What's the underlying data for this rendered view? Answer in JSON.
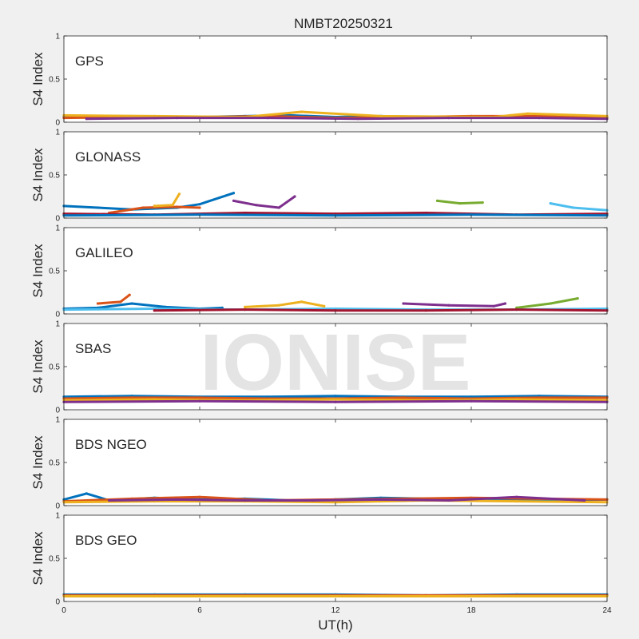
{
  "chart_data": {
    "type": "line",
    "title": "NMBT20250321",
    "xlabel": "UT(h)",
    "ylabel": "S4 Index",
    "xlim": [
      0,
      24
    ],
    "ylim": [
      0,
      1
    ],
    "xticks": [
      "0",
      "6",
      "12",
      "18",
      "24"
    ],
    "yticks": [
      "0",
      "0.5",
      "1"
    ],
    "grid": false,
    "watermark": "IONISE",
    "colors": [
      "#0072bd",
      "#d95319",
      "#edb120",
      "#7e2f8e",
      "#77ac30",
      "#4dbeee",
      "#a2142f"
    ],
    "panels": [
      {
        "name": "GPS",
        "series": [
          {
            "x": [
              0,
              2,
              4,
              6,
              8,
              10,
              12,
              14,
              16,
              18,
              20,
              22,
              24
            ],
            "values": [
              0.06,
              0.07,
              0.05,
              0.06,
              0.07,
              0.08,
              0.06,
              0.07,
              0.06,
              0.06,
              0.07,
              0.06,
              0.06
            ]
          },
          {
            "x": [
              0,
              3,
              6,
              9,
              12,
              15,
              18,
              21,
              24
            ],
            "values": [
              0.05,
              0.06,
              0.06,
              0.07,
              0.05,
              0.06,
              0.07,
              0.07,
              0.05
            ]
          },
          {
            "x": [
              0,
              4,
              8,
              10.5,
              14,
              19,
              20.5,
              24
            ],
            "values": [
              0.08,
              0.07,
              0.06,
              0.12,
              0.07,
              0.06,
              0.1,
              0.07
            ]
          },
          {
            "x": [
              1,
              5,
              9,
              13,
              17,
              21,
              24
            ],
            "values": [
              0.04,
              0.05,
              0.05,
              0.04,
              0.05,
              0.05,
              0.04
            ]
          }
        ]
      },
      {
        "name": "GLONASS",
        "series": [
          {
            "x": [
              0,
              1.5,
              3,
              5,
              6,
              7.5
            ],
            "values": [
              0.14,
              0.12,
              0.1,
              0.12,
              0.16,
              0.29
            ]
          },
          {
            "x": [
              2,
              3.5,
              5,
              6
            ],
            "values": [
              0.06,
              0.12,
              0.13,
              0.12
            ]
          },
          {
            "x": [
              4,
              4.8,
              5.1
            ],
            "values": [
              0.14,
              0.15,
              0.28
            ]
          },
          {
            "x": [
              7.5,
              8.5,
              9.5,
              10.2
            ],
            "values": [
              0.2,
              0.15,
              0.12,
              0.25
            ]
          },
          {
            "x": [
              16.5,
              17.5,
              18.5
            ],
            "values": [
              0.2,
              0.17,
              0.18
            ]
          },
          {
            "x": [
              21.5,
              22.5,
              24
            ],
            "values": [
              0.17,
              0.12,
              0.09
            ]
          },
          {
            "x": [
              0,
              4,
              8,
              12,
              16,
              20,
              24
            ],
            "values": [
              0.05,
              0.04,
              0.06,
              0.05,
              0.06,
              0.04,
              0.05
            ]
          },
          {
            "x": [
              0,
              6,
              12,
              18,
              24
            ],
            "values": [
              0.03,
              0.04,
              0.03,
              0.04,
              0.03
            ]
          }
        ]
      },
      {
        "name": "GALILEO",
        "series": [
          {
            "x": [
              0,
              1.5,
              3,
              4.5,
              6,
              7
            ],
            "values": [
              0.06,
              0.07,
              0.12,
              0.08,
              0.06,
              0.07
            ]
          },
          {
            "x": [
              1.5,
              2.5,
              2.9
            ],
            "values": [
              0.12,
              0.14,
              0.22
            ]
          },
          {
            "x": [
              8,
              9.5,
              10.5,
              11.5
            ],
            "values": [
              0.08,
              0.1,
              0.14,
              0.09
            ]
          },
          {
            "x": [
              15,
              17,
              19,
              19.5
            ],
            "values": [
              0.12,
              0.1,
              0.09,
              0.12
            ]
          },
          {
            "x": [
              20,
              21.5,
              22.7
            ],
            "values": [
              0.07,
              0.12,
              0.18
            ]
          },
          {
            "x": [
              0,
              4,
              8,
              12,
              16,
              20,
              24
            ],
            "values": [
              0.05,
              0.06,
              0.05,
              0.06,
              0.05,
              0.05,
              0.06
            ]
          },
          {
            "x": [
              4,
              8,
              12,
              16,
              20,
              24
            ],
            "values": [
              0.04,
              0.05,
              0.04,
              0.04,
              0.05,
              0.04
            ]
          }
        ]
      },
      {
        "name": "SBAS",
        "series": [
          {
            "x": [
              0,
              3,
              6,
              9,
              12,
              15,
              18,
              21,
              24
            ],
            "values": [
              0.15,
              0.16,
              0.15,
              0.15,
              0.16,
              0.15,
              0.15,
              0.16,
              0.15
            ]
          },
          {
            "x": [
              0,
              3,
              6,
              9,
              12,
              15,
              18,
              21,
              24
            ],
            "values": [
              0.13,
              0.14,
              0.14,
              0.13,
              0.13,
              0.14,
              0.13,
              0.14,
              0.14
            ]
          },
          {
            "x": [
              0,
              4,
              8,
              12,
              16,
              20,
              24
            ],
            "values": [
              0.11,
              0.12,
              0.11,
              0.12,
              0.11,
              0.12,
              0.11
            ]
          },
          {
            "x": [
              0,
              6,
              12,
              18,
              24
            ],
            "values": [
              0.09,
              0.1,
              0.09,
              0.1,
              0.09
            ]
          }
        ]
      },
      {
        "name": "BDS NGEO",
        "series": [
          {
            "x": [
              0,
              1,
              2,
              4,
              6,
              8,
              10,
              12,
              14,
              16,
              18,
              20,
              22,
              24
            ],
            "values": [
              0.07,
              0.14,
              0.06,
              0.09,
              0.07,
              0.08,
              0.06,
              0.07,
              0.09,
              0.08,
              0.06,
              0.07,
              0.06,
              0.07
            ]
          },
          {
            "x": [
              0,
              3,
              6,
              9,
              12,
              15,
              18,
              21,
              24
            ],
            "values": [
              0.05,
              0.08,
              0.1,
              0.06,
              0.07,
              0.08,
              0.09,
              0.08,
              0.07
            ]
          },
          {
            "x": [
              0,
              4,
              8,
              12,
              16,
              20,
              24
            ],
            "values": [
              0.04,
              0.05,
              0.05,
              0.04,
              0.06,
              0.05,
              0.04
            ]
          },
          {
            "x": [
              2,
              5,
              8,
              11,
              14,
              17,
              20,
              23
            ],
            "values": [
              0.06,
              0.07,
              0.06,
              0.06,
              0.07,
              0.06,
              0.1,
              0.06
            ]
          }
        ]
      },
      {
        "name": "BDS GEO",
        "series": [
          {
            "x": [
              0,
              4,
              8,
              12,
              16,
              20,
              24
            ],
            "values": [
              0.08,
              0.08,
              0.08,
              0.08,
              0.07,
              0.08,
              0.08
            ]
          },
          {
            "x": [
              0,
              4,
              8,
              12,
              16,
              20,
              24
            ],
            "values": [
              0.07,
              0.07,
              0.07,
              0.07,
              0.07,
              0.07,
              0.07
            ]
          },
          {
            "x": [
              0,
              4,
              8,
              12,
              16,
              20,
              24
            ],
            "values": [
              0.06,
              0.06,
              0.06,
              0.06,
              0.06,
              0.06,
              0.06
            ]
          }
        ]
      }
    ]
  }
}
